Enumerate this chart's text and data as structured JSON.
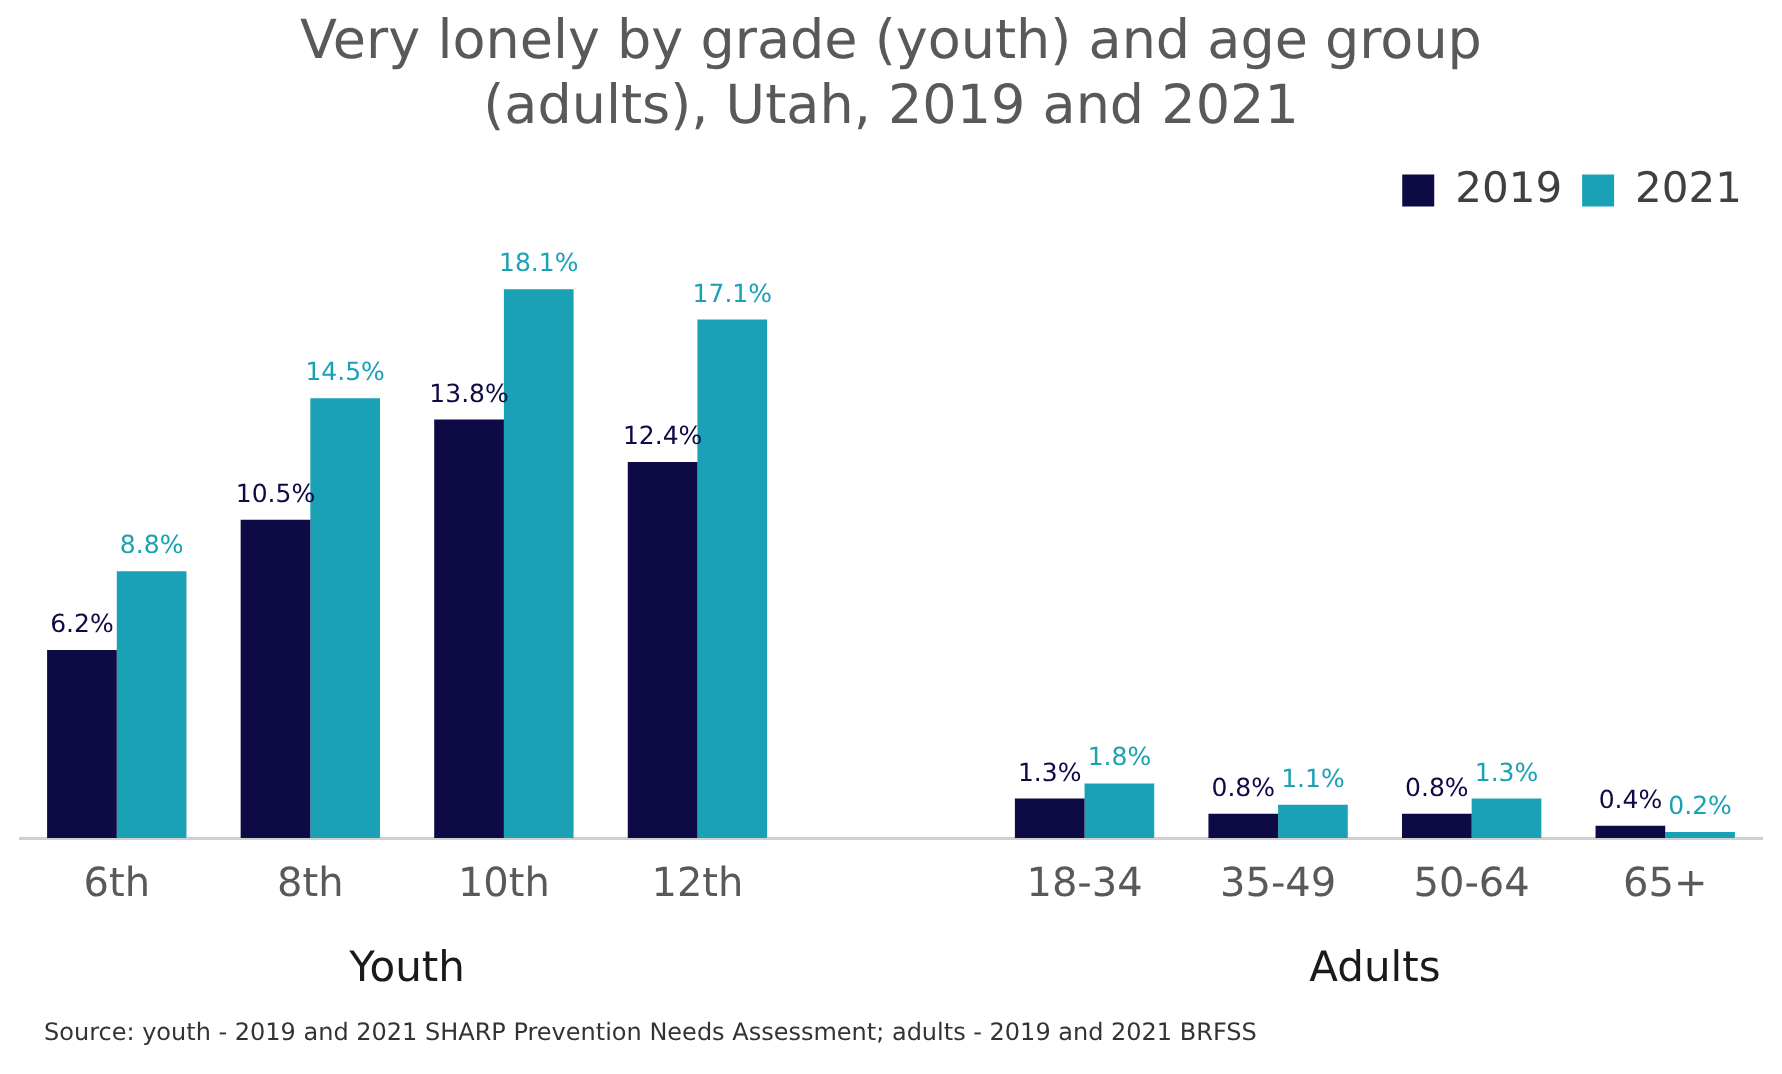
{
  "chart_data": {
    "type": "bar",
    "title": "Very lonely by grade (youth) and age group (adults), Utah, 2019 and 2021",
    "categories": [
      "6th",
      "8th",
      "10th",
      "12th",
      null,
      "18-34",
      "35-49",
      "50-64",
      "65+"
    ],
    "series": [
      {
        "name": "2019",
        "color": "#0d0a45",
        "values": [
          6.2,
          10.5,
          13.8,
          12.4,
          null,
          1.3,
          0.8,
          0.8,
          0.4
        ],
        "value_labels": [
          "6.2%",
          "10.5%",
          "13.8%",
          "12.4%",
          null,
          "1.3%",
          "0.8%",
          "0.8%",
          "0.4%"
        ]
      },
      {
        "name": "2021",
        "color": "#1aa1b5",
        "values": [
          8.8,
          14.5,
          18.1,
          17.1,
          null,
          1.8,
          1.1,
          1.3,
          0.2
        ],
        "value_labels": [
          "8.8%",
          "14.5%",
          "18.1%",
          "17.1%",
          null,
          "1.8%",
          "1.1%",
          "1.3%",
          "0.2%"
        ]
      }
    ],
    "annotations": [
      "Youth",
      "Adults",
      "Source: youth - 2019 and 2021 SHARP Prevention Needs Assessment; adults - 2019 and 2021 BRFSS"
    ],
    "grid": false,
    "legend": "top right",
    "tick_labels": "x"
  }
}
